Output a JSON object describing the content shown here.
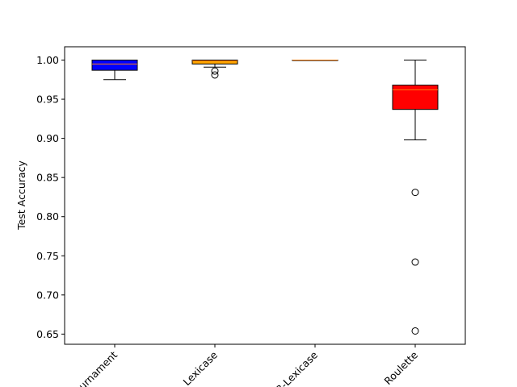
{
  "chart_data": {
    "type": "box",
    "title": "",
    "xlabel": "",
    "ylabel": "Test Accuracy",
    "ylim": [
      0.637,
      1.017
    ],
    "yticks": [
      "0.65",
      "0.70",
      "0.75",
      "0.80",
      "0.85",
      "0.90",
      "0.95",
      "1.00"
    ],
    "grid": false,
    "categories": [
      "Tournament",
      "Lexicase",
      "B-Lexicase",
      "Roulette"
    ],
    "boxes": [
      {
        "name": "Tournament",
        "color": "#0000ff",
        "whisker_low": 0.975,
        "q1": 0.987,
        "median": 0.995,
        "q3": 1.0,
        "whisker_high": 1.0,
        "outliers": []
      },
      {
        "name": "Lexicase",
        "color": "#ffa500",
        "whisker_low": 0.991,
        "q1": 0.995,
        "median": 0.999,
        "q3": 1.0,
        "whisker_high": 1.0,
        "outliers": [
          0.981,
          0.986
        ]
      },
      {
        "name": "B-Lexicase",
        "color": "#ffa500",
        "whisker_low": 1.0,
        "q1": 1.0,
        "median": 1.0,
        "q3": 1.0,
        "whisker_high": 1.0,
        "outliers": []
      },
      {
        "name": "Roulette",
        "color": "#ff0000",
        "whisker_low": 0.898,
        "q1": 0.937,
        "median": 0.962,
        "q3": 0.968,
        "whisker_high": 1.0,
        "outliers": [
          0.831,
          0.742,
          0.654
        ]
      }
    ]
  }
}
